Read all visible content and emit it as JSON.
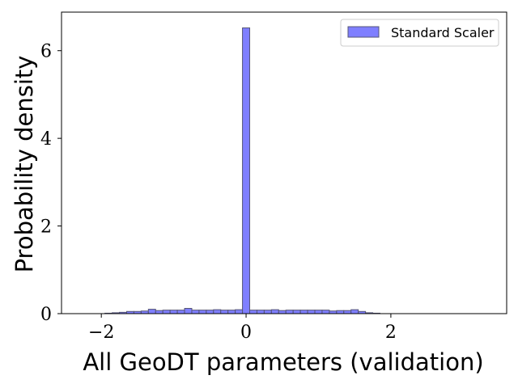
{
  "chart_data": {
    "type": "bar",
    "subtype": "histogram",
    "xlabel": "All GeoDT parameters (validation)",
    "ylabel": "Probability density",
    "xlim": [
      -2.55,
      3.6
    ],
    "ylim": [
      0,
      6.88
    ],
    "xticks": [
      -2,
      0,
      2
    ],
    "yticks": [
      0,
      2,
      4,
      6
    ],
    "xtick_labels": [
      "−2",
      "0",
      "2"
    ],
    "ytick_labels": [
      "0",
      "2",
      "4",
      "6"
    ],
    "grid": false,
    "legend_position": "top-right",
    "bar_color": "#7f7fff",
    "edge_color": "#555577",
    "series": [
      {
        "name": "Standard Scaler",
        "bin_width": 0.1,
        "bin_left": [
          -2.15,
          -2.05,
          -1.95,
          -1.85,
          -1.75,
          -1.65,
          -1.55,
          -1.45,
          -1.35,
          -1.25,
          -1.15,
          -1.05,
          -0.95,
          -0.85,
          -0.75,
          -0.65,
          -0.55,
          -0.45,
          -0.35,
          -0.25,
          -0.15,
          -0.05,
          0.05,
          0.15,
          0.25,
          0.35,
          0.45,
          0.55,
          0.65,
          0.75,
          0.85,
          0.95,
          1.05,
          1.15,
          1.25,
          1.35,
          1.45,
          1.55,
          1.65,
          1.75,
          1.85,
          1.95,
          2.05,
          2.15,
          2.25,
          2.35,
          2.45,
          2.55,
          2.65,
          2.75,
          2.85,
          2.95,
          3.05,
          3.15,
          3.25
        ],
        "density": [
          0.0,
          0.0,
          0.01,
          0.02,
          0.03,
          0.05,
          0.05,
          0.06,
          0.1,
          0.07,
          0.08,
          0.08,
          0.08,
          0.12,
          0.08,
          0.08,
          0.08,
          0.09,
          0.08,
          0.08,
          0.09,
          6.52,
          0.08,
          0.08,
          0.08,
          0.09,
          0.07,
          0.08,
          0.08,
          0.08,
          0.08,
          0.08,
          0.08,
          0.06,
          0.07,
          0.07,
          0.09,
          0.05,
          0.02,
          0.01,
          0.0,
          0.0,
          0.0,
          0.0,
          0.0,
          0.0,
          0.0,
          0.0,
          0.0,
          0.0,
          0.0,
          0.0,
          0.0,
          0.0,
          0.0
        ]
      }
    ]
  }
}
